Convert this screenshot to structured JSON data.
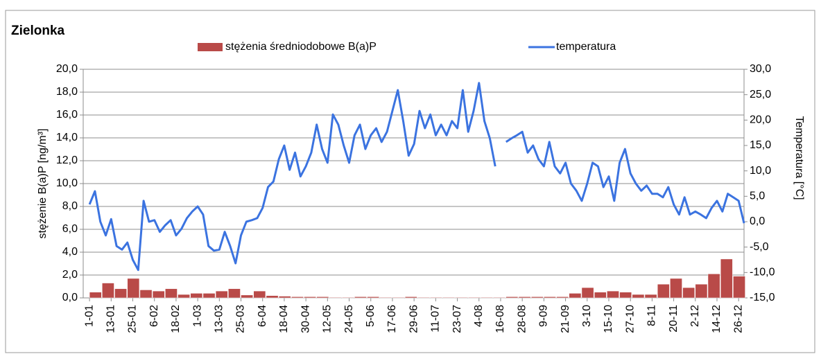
{
  "chart_data": {
    "type": "combo",
    "title": "Zielonka",
    "ylabel": "stężenie B(a)P  [ng/m³]",
    "y2label": "Temperatura [°C]",
    "legend": "top",
    "grid": true,
    "xlim": [
      -2.5,
      364
    ],
    "xticks": [
      {
        "value": 1,
        "label": "1-01"
      },
      {
        "value": 13,
        "label": "13-01"
      },
      {
        "value": 25,
        "label": "25-01"
      },
      {
        "value": 37,
        "label": "6-02"
      },
      {
        "value": 49,
        "label": "18-02"
      },
      {
        "value": 61,
        "label": "1-03"
      },
      {
        "value": 73,
        "label": "13-03"
      },
      {
        "value": 85,
        "label": "25-03"
      },
      {
        "value": 97,
        "label": "6-04"
      },
      {
        "value": 109,
        "label": "18-04"
      },
      {
        "value": 121,
        "label": "30-04"
      },
      {
        "value": 133,
        "label": "12-05"
      },
      {
        "value": 145,
        "label": "24-05"
      },
      {
        "value": 157,
        "label": "5-06"
      },
      {
        "value": 169,
        "label": "17-06"
      },
      {
        "value": 181,
        "label": "29-06"
      },
      {
        "value": 193,
        "label": "11-07"
      },
      {
        "value": 205,
        "label": "23-07"
      },
      {
        "value": 217,
        "label": "4-08"
      },
      {
        "value": 229,
        "label": "16-08"
      },
      {
        "value": 241,
        "label": "28-08"
      },
      {
        "value": 253,
        "label": "9-09"
      },
      {
        "value": 265,
        "label": "21-09"
      },
      {
        "value": 277,
        "label": "3-10"
      },
      {
        "value": 289,
        "label": "15-10"
      },
      {
        "value": 301,
        "label": "27-10"
      },
      {
        "value": 313,
        "label": "8-11"
      },
      {
        "value": 325,
        "label": "20-11"
      },
      {
        "value": 337,
        "label": "2-12"
      },
      {
        "value": 349,
        "label": "14-12"
      },
      {
        "value": 361,
        "label": "26-12"
      }
    ],
    "ylim": [
      0,
      20
    ],
    "yticks": [
      {
        "value": 0,
        "label": "0,0"
      },
      {
        "value": 2,
        "label": "2,0"
      },
      {
        "value": 4,
        "label": "4,0"
      },
      {
        "value": 6,
        "label": "6,0"
      },
      {
        "value": 8,
        "label": "8,0"
      },
      {
        "value": 10,
        "label": "10,0"
      },
      {
        "value": 12,
        "label": "12,0"
      },
      {
        "value": 14,
        "label": "14,0"
      },
      {
        "value": 16,
        "label": "16,0"
      },
      {
        "value": 18,
        "label": "18,0"
      },
      {
        "value": 20,
        "label": "20,0"
      }
    ],
    "y2lim": [
      -15,
      30
    ],
    "y2ticks": [
      {
        "value": -15,
        "label": "-15,0"
      },
      {
        "value": -10,
        "label": "-10,0"
      },
      {
        "value": -5,
        "label": "-5,0"
      },
      {
        "value": 0,
        "label": "0,0"
      },
      {
        "value": 5,
        "label": "5,0"
      },
      {
        "value": 10,
        "label": "10,0"
      },
      {
        "value": 15,
        "label": "15,0"
      },
      {
        "value": 20,
        "label": "20,0"
      },
      {
        "value": 25,
        "label": "25,0"
      },
      {
        "value": 30,
        "label": "30,0"
      }
    ],
    "series": [
      {
        "name": "stężenia średniodobowe B(a)P",
        "type": "bar",
        "color": "#b94a48",
        "x": [
          1,
          8,
          15,
          22,
          29,
          36,
          43,
          50,
          57,
          64,
          71,
          78,
          85,
          92,
          99,
          106,
          113,
          120,
          127,
          134,
          141,
          148,
          155,
          162,
          169,
          176,
          183,
          190,
          197,
          204,
          211,
          218,
          225,
          232,
          239,
          246,
          253,
          260,
          267,
          274,
          281,
          288,
          295,
          302,
          309,
          316,
          323,
          330,
          337,
          344,
          351,
          358
        ],
        "values": [
          0.5,
          1.3,
          0.8,
          1.7,
          0.7,
          0.6,
          0.8,
          0.3,
          0.4,
          0.4,
          0.6,
          0.8,
          0.25,
          0.6,
          0.2,
          0.15,
          0.1,
          0.1,
          0.1,
          0.05,
          0.05,
          0.1,
          0.1,
          0.05,
          0.05,
          0.1,
          0.05,
          0.05,
          0.05,
          0.05,
          0.05,
          0.05,
          0.05,
          0.1,
          0.1,
          0.1,
          0.1,
          0.1,
          0.4,
          0.9,
          0.5,
          0.6,
          0.5,
          0.3,
          0.3,
          1.2,
          1.7,
          0.9,
          1.2,
          2.1,
          3.4,
          1.9
        ]
      },
      {
        "name": "temperatura",
        "type": "line",
        "axis": "y2",
        "color": "#3b73e0",
        "x": [
          1,
          4,
          7,
          10,
          13,
          16,
          19,
          22,
          25,
          28,
          31,
          34,
          37,
          40,
          43,
          46,
          49,
          52,
          55,
          58,
          61,
          64,
          67,
          70,
          73,
          76,
          79,
          82,
          85,
          88,
          91,
          94,
          97,
          100,
          103,
          106,
          109,
          112,
          115,
          118,
          121,
          124,
          127,
          130,
          133,
          136,
          139,
          142,
          145,
          148,
          151,
          154,
          157,
          160,
          163,
          166,
          169,
          172,
          175,
          178,
          181,
          184,
          187,
          190,
          193,
          196,
          199,
          202,
          205,
          208,
          211,
          214,
          217,
          220,
          223,
          226,
          229,
          232,
          235,
          238,
          241,
          244,
          247,
          250,
          253,
          256,
          259,
          262,
          265,
          268,
          271,
          274,
          277,
          280,
          283,
          286,
          289,
          292,
          295,
          298,
          301,
          304,
          307,
          310,
          313,
          316,
          319,
          322,
          325,
          328,
          331,
          334,
          337,
          340,
          343,
          346,
          349,
          352,
          355,
          358,
          361,
          364
        ],
        "values": [
          3.4,
          6.0,
          0,
          -2.7,
          0.5,
          -4.8,
          -5.5,
          -4.1,
          -7.5,
          -9.5,
          4.1,
          0,
          0.3,
          -2,
          -0.7,
          0.3,
          -2.7,
          -1.4,
          0.7,
          2.0,
          3.0,
          1.4,
          -4.8,
          -5.7,
          -5.5,
          -2,
          -4.8,
          -8.2,
          -2.7,
          0,
          0.3,
          0.7,
          2.7,
          6.8,
          7.9,
          12.3,
          15.0,
          10.2,
          13.6,
          8.9,
          10.9,
          13.6,
          19.1,
          14.3,
          11.6,
          21.1,
          19.1,
          15.0,
          11.6,
          17.0,
          19.1,
          14.3,
          17.0,
          18.4,
          15.7,
          17.7,
          21.8,
          25.9,
          19.8,
          13.0,
          15.3,
          21.8,
          18.4,
          21.1,
          17.0,
          19.1,
          17.0,
          19.8,
          18.4,
          25.9,
          17.7,
          21.8,
          27.3,
          19.8,
          16.4,
          10.9,
          null,
          15.7,
          16.4,
          17.0,
          17.7,
          13.6,
          15.0,
          12.3,
          10.9,
          15.7,
          10.9,
          9.5,
          11.6,
          7.5,
          6.1,
          4.1,
          7.5,
          11.6,
          10.9,
          6.8,
          8.9,
          4.1,
          11.6,
          14.3,
          9.5,
          7.5,
          6.1,
          7.1,
          5.5,
          5.5,
          4.8,
          6.8,
          3.4,
          1.4,
          4.8,
          1.4,
          2.0,
          1.4,
          0.7,
          2.7,
          4.1,
          2.0,
          5.5,
          4.8,
          4.1,
          -0.3
        ]
      }
    ]
  }
}
